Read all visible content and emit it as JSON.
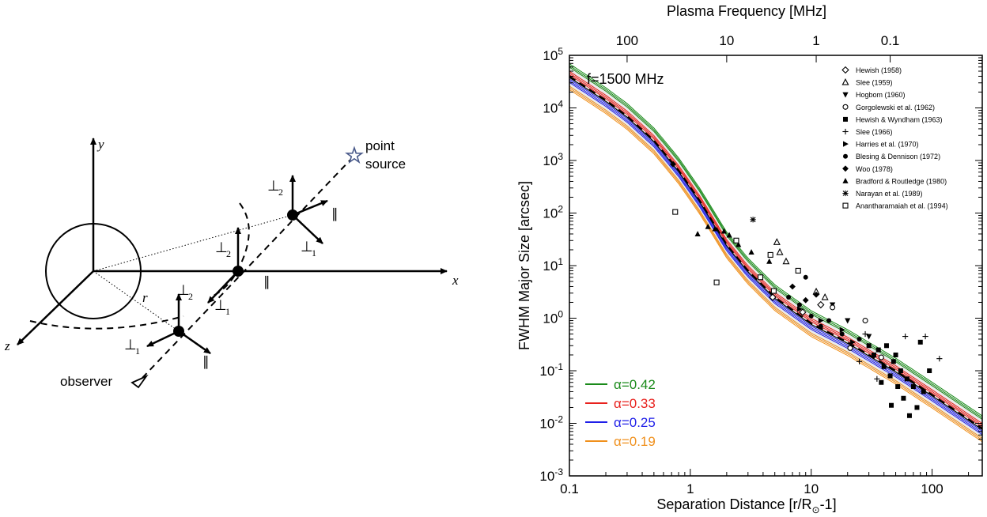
{
  "diagram": {
    "axes": {
      "x": "x",
      "y": "y",
      "z": "z"
    },
    "labels": {
      "point_source_1": "point",
      "point_source_2": "source",
      "observer": "observer",
      "r": "r",
      "parallel": "∥",
      "perp": "⊥",
      "sub1": "1",
      "sub2": "2"
    }
  },
  "chart_data": {
    "type": "scatter",
    "title": "",
    "xlabel": "Separation Distance [r/R",
    "xlabel_sub": "⊙",
    "xlabel_end": "-1]",
    "x2label": "Plasma Frequency [MHz]",
    "ylabel": "FWHM Major Size [arcsec]",
    "xscale": "log",
    "yscale": "log",
    "xlim": [
      0.1,
      260
    ],
    "ylim": [
      0.001,
      100000
    ],
    "x_ticks": [
      "0.1",
      "1",
      "10",
      "100"
    ],
    "x2_ticks": [
      "100",
      "10",
      "1",
      "0.1"
    ],
    "x2_tick_positions_rsun": [
      0.3,
      2.0,
      11.0,
      45.0
    ],
    "y_ticks": [
      "10-3",
      "10-2",
      "10-1",
      "100",
      "101",
      "102",
      "103",
      "104",
      "105"
    ],
    "annotation": "f=1500 MHz",
    "legend_placement": "top-right",
    "legend": [
      {
        "label": "Hewish (1958)",
        "marker": "diamond-open"
      },
      {
        "label": "Slee (1959)",
        "marker": "triangle-open"
      },
      {
        "label": "Hogbom (1960)",
        "marker": "triangle-down"
      },
      {
        "label": "Gorgolewski et al. (1962)",
        "marker": "circle-open"
      },
      {
        "label": "Hewish & Wyndham (1963)",
        "marker": "square"
      },
      {
        "label": "Slee (1966)",
        "marker": "plus"
      },
      {
        "label": "Harries et al. (1970)",
        "marker": "triangle-right"
      },
      {
        "label": "Blesing & Dennison (1972)",
        "marker": "circle"
      },
      {
        "label": "Woo (1978)",
        "marker": "diamond"
      },
      {
        "label": "Bradford & Routledge (1980)",
        "marker": "triangle"
      },
      {
        "label": "Narayan et al. (1989)",
        "marker": "asterisk"
      },
      {
        "label": "Anantharamaiah et al. (1994)",
        "marker": "square-open"
      }
    ],
    "series": [
      {
        "name": "α=0.42",
        "color": "#1a8a1a",
        "offset": 1.6
      },
      {
        "name": "α=0.33",
        "color": "#e8211d",
        "offset": 1.15
      },
      {
        "name": "α=0.25",
        "color": "#1f1fe8",
        "offset": 0.82
      },
      {
        "name": "α=0.19",
        "color": "#f0901c",
        "offset": 0.6
      }
    ],
    "model_curve": {
      "x": [
        0.1,
        0.2,
        0.3,
        0.5,
        0.8,
        1.2,
        2,
        3,
        5,
        10,
        20,
        50,
        100,
        250
      ],
      "y": [
        40000,
        14000,
        7000,
        2400,
        650,
        170,
        25,
        8,
        2.5,
        0.8,
        0.35,
        0.1,
        0.035,
        0.0085
      ]
    },
    "points": [
      {
        "m": "diamond-open",
        "x": 4.8,
        "y": 2.5
      },
      {
        "m": "diamond-open",
        "x": 8.5,
        "y": 1.3
      },
      {
        "m": "diamond-open",
        "x": 12,
        "y": 1.8
      },
      {
        "m": "triangle-open",
        "x": 5.2,
        "y": 28
      },
      {
        "m": "triangle-open",
        "x": 5.5,
        "y": 18
      },
      {
        "m": "triangle-open",
        "x": 6.2,
        "y": 12
      },
      {
        "m": "triangle-open",
        "x": 11,
        "y": 3.2
      },
      {
        "m": "triangle-open",
        "x": 13,
        "y": 2.5
      },
      {
        "m": "triangle-down",
        "x": 15,
        "y": 1.8
      },
      {
        "m": "triangle-down",
        "x": 20,
        "y": 0.9
      },
      {
        "m": "triangle-down",
        "x": 30,
        "y": 0.45
      },
      {
        "m": "circle-open",
        "x": 15,
        "y": 1.6
      },
      {
        "m": "circle-open",
        "x": 21,
        "y": 0.27
      },
      {
        "m": "circle-open",
        "x": 28,
        "y": 0.9
      },
      {
        "m": "circle-open",
        "x": 38,
        "y": 0.18
      },
      {
        "m": "square",
        "x": 30,
        "y": 0.3
      },
      {
        "m": "square",
        "x": 33,
        "y": 0.2
      },
      {
        "m": "square",
        "x": 36,
        "y": 0.25
      },
      {
        "m": "square",
        "x": 40,
        "y": 0.12
      },
      {
        "m": "square",
        "x": 42,
        "y": 0.3
      },
      {
        "m": "square",
        "x": 45,
        "y": 0.08
      },
      {
        "m": "square",
        "x": 48,
        "y": 0.15
      },
      {
        "m": "square",
        "x": 52,
        "y": 0.05
      },
      {
        "m": "square",
        "x": 55,
        "y": 0.1
      },
      {
        "m": "square",
        "x": 58,
        "y": 0.03
      },
      {
        "m": "square",
        "x": 62,
        "y": 0.07
      },
      {
        "m": "square",
        "x": 65,
        "y": 0.014
      },
      {
        "m": "square",
        "x": 70,
        "y": 0.05
      },
      {
        "m": "square",
        "x": 75,
        "y": 0.02
      },
      {
        "m": "square",
        "x": 80,
        "y": 0.35
      },
      {
        "m": "square",
        "x": 85,
        "y": 0.04
      },
      {
        "m": "square",
        "x": 95,
        "y": 0.1
      },
      {
        "m": "square",
        "x": 38,
        "y": 0.06
      },
      {
        "m": "square",
        "x": 46,
        "y": 0.022
      },
      {
        "m": "square",
        "x": 50,
        "y": 0.2
      },
      {
        "m": "plus",
        "x": 25,
        "y": 0.15
      },
      {
        "m": "plus",
        "x": 35,
        "y": 0.07
      },
      {
        "m": "plus",
        "x": 60,
        "y": 0.45
      },
      {
        "m": "plus",
        "x": 88,
        "y": 0.45
      },
      {
        "m": "plus",
        "x": 115,
        "y": 0.17
      },
      {
        "m": "plus",
        "x": 28,
        "y": 0.5
      },
      {
        "m": "triangle-right",
        "x": 8,
        "y": 1.5
      },
      {
        "m": "triangle-right",
        "x": 12,
        "y": 0.9
      },
      {
        "m": "triangle-right",
        "x": 18,
        "y": 0.6
      },
      {
        "m": "triangle-right",
        "x": 22,
        "y": 0.35
      },
      {
        "m": "circle",
        "x": 6.5,
        "y": 2.5
      },
      {
        "m": "circle",
        "x": 8,
        "y": 1.8
      },
      {
        "m": "circle",
        "x": 9,
        "y": 6
      },
      {
        "m": "circle",
        "x": 10,
        "y": 1.1
      },
      {
        "m": "circle",
        "x": 12,
        "y": 0.7
      },
      {
        "m": "circle",
        "x": 14,
        "y": 0.9
      },
      {
        "m": "circle",
        "x": 18,
        "y": 0.5
      },
      {
        "m": "circle",
        "x": 25,
        "y": 0.4
      },
      {
        "m": "diamond",
        "x": 0.72,
        "y": 850
      },
      {
        "m": "diamond",
        "x": 9,
        "y": 2.2
      },
      {
        "m": "diamond",
        "x": 11,
        "y": 2.8
      },
      {
        "m": "diamond",
        "x": 7,
        "y": 4
      },
      {
        "m": "triangle",
        "x": 1.15,
        "y": 40
      },
      {
        "m": "triangle",
        "x": 1.4,
        "y": 55
      },
      {
        "m": "triangle",
        "x": 1.6,
        "y": 50
      },
      {
        "m": "triangle",
        "x": 1.9,
        "y": 45
      },
      {
        "m": "triangle",
        "x": 2.5,
        "y": 25
      },
      {
        "m": "triangle",
        "x": 3.2,
        "y": 18
      },
      {
        "m": "triangle",
        "x": 4.5,
        "y": 12
      },
      {
        "m": "triangle",
        "x": 2.1,
        "y": 38
      },
      {
        "m": "asterisk",
        "x": 3.3,
        "y": 75
      },
      {
        "m": "square-open",
        "x": 0.75,
        "y": 105
      },
      {
        "m": "square-open",
        "x": 1.65,
        "y": 4.8
      },
      {
        "m": "square-open",
        "x": 2.4,
        "y": 30
      },
      {
        "m": "square-open",
        "x": 3.8,
        "y": 6
      },
      {
        "m": "square-open",
        "x": 4.6,
        "y": 16
      },
      {
        "m": "square-open",
        "x": 4.9,
        "y": 3.3
      },
      {
        "m": "square-open",
        "x": 7.8,
        "y": 8
      }
    ]
  }
}
